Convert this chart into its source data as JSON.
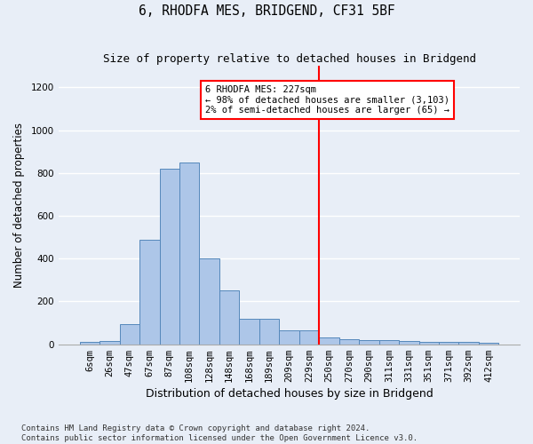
{
  "title": "6, RHODFA MES, BRIDGEND, CF31 5BF",
  "subtitle": "Size of property relative to detached houses in Bridgend",
  "xlabel": "Distribution of detached houses by size in Bridgend",
  "ylabel": "Number of detached properties",
  "footer_line1": "Contains HM Land Registry data © Crown copyright and database right 2024.",
  "footer_line2": "Contains public sector information licensed under the Open Government Licence v3.0.",
  "bar_labels": [
    "6sqm",
    "26sqm",
    "47sqm",
    "67sqm",
    "87sqm",
    "108sqm",
    "128sqm",
    "148sqm",
    "168sqm",
    "189sqm",
    "209sqm",
    "229sqm",
    "250sqm",
    "270sqm",
    "290sqm",
    "311sqm",
    "331sqm",
    "351sqm",
    "371sqm",
    "392sqm",
    "412sqm"
  ],
  "bar_values": [
    10,
    15,
    95,
    490,
    820,
    848,
    403,
    250,
    120,
    120,
    65,
    65,
    33,
    25,
    18,
    18,
    15,
    10,
    10,
    12,
    8
  ],
  "bar_color": "#adc6e8",
  "bar_edge_color": "#5588bb",
  "background_color": "#e8eef7",
  "plot_bg_color": "#e8eef7",
  "grid_color": "#ffffff",
  "annotation_text": "6 RHODFA MES: 227sqm\n← 98% of detached houses are smaller (3,103)\n2% of semi-detached houses are larger (65) →",
  "annotation_box_color": "white",
  "annotation_box_edge_color": "red",
  "vline_color": "red",
  "vline_x_index": 11.5,
  "ylim": [
    0,
    1300
  ],
  "yticks": [
    0,
    200,
    400,
    600,
    800,
    1000,
    1200
  ],
  "title_fontsize": 10.5,
  "subtitle_fontsize": 9,
  "ylabel_fontsize": 8.5,
  "xlabel_fontsize": 9,
  "footer_fontsize": 6.5,
  "annot_fontsize": 7.5,
  "tick_fontsize": 7.5
}
